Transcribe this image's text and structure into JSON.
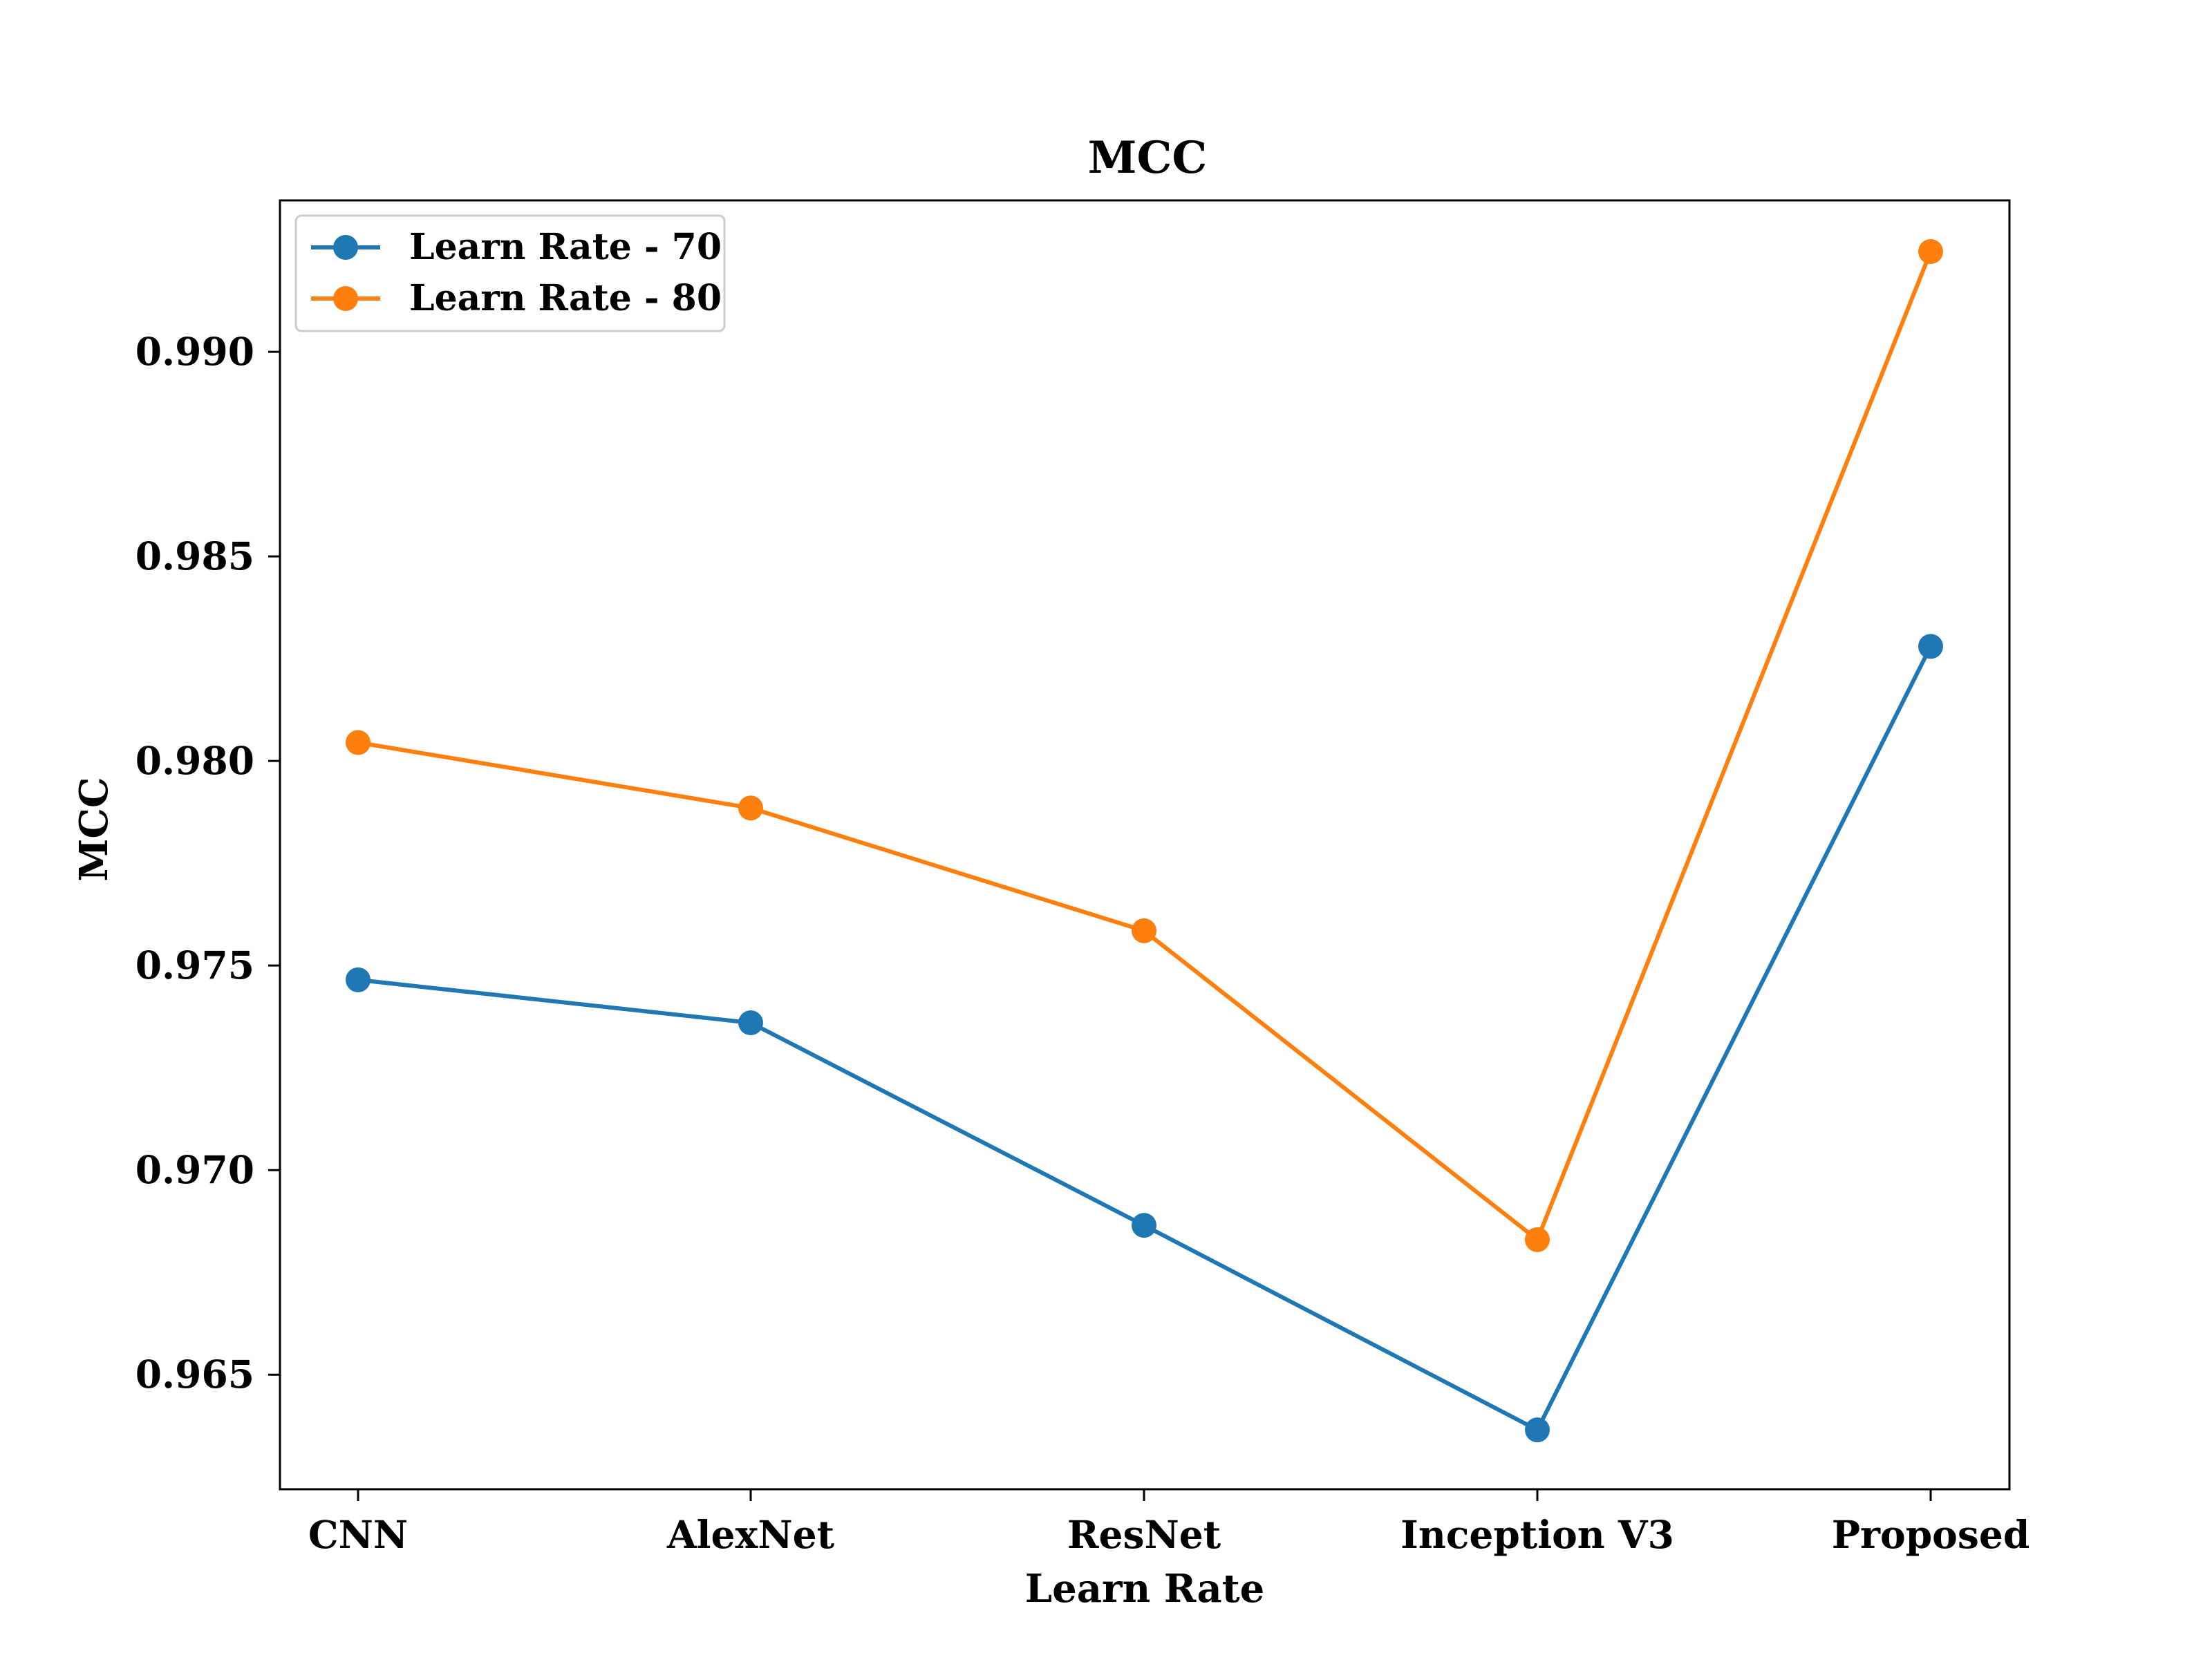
{
  "chart_data": {
    "type": "line",
    "title": "MCC",
    "xlabel": "Learn Rate",
    "ylabel": "MCC",
    "categories": [
      "CNN",
      "AlexNet",
      "ResNet",
      "Inception V3",
      "Proposed"
    ],
    "series": [
      {
        "name": "Learn Rate - 70",
        "color": "#1f77b4",
        "marker": "circle",
        "values": [
          0.97465,
          0.9736,
          0.96865,
          0.96365,
          0.9828
        ]
      },
      {
        "name": "Learn Rate - 80",
        "color": "#ff7f0e",
        "marker": "circle",
        "values": [
          0.98045,
          0.97885,
          0.97585,
          0.9683,
          0.99245
        ]
      }
    ],
    "ylim": [
      0.9622,
      0.9937
    ],
    "yticks": [
      0.965,
      0.97,
      0.975,
      0.98,
      0.985,
      0.99
    ],
    "ytick_labels": [
      "0.965",
      "0.970",
      "0.975",
      "0.980",
      "0.985",
      "0.990"
    ],
    "grid": false,
    "legend_position": "top-left"
  }
}
